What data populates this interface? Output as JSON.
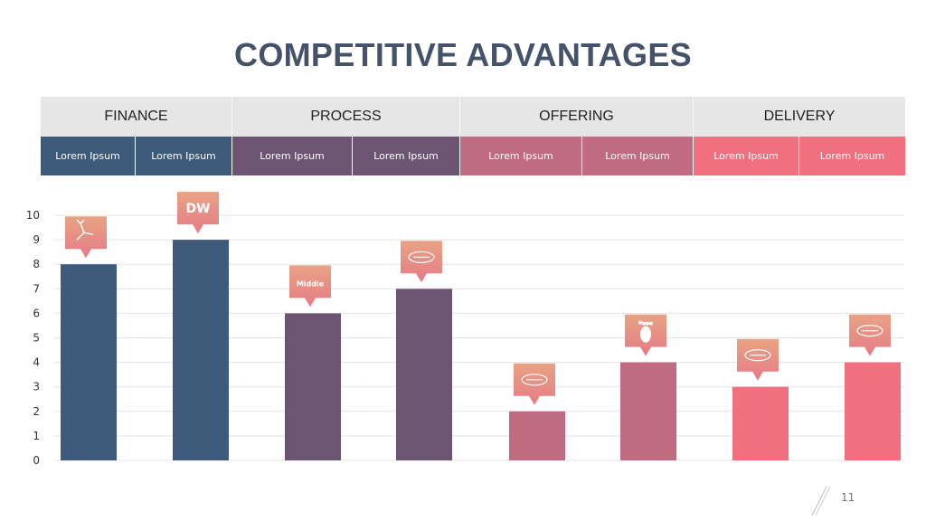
{
  "title": "COMPETITIVE ADVANTAGES",
  "page_number": "11",
  "groups": [
    {
      "label": "FINANCE"
    },
    {
      "label": "PROCESS"
    },
    {
      "label": "OFFERING"
    },
    {
      "label": "DELIVERY"
    }
  ],
  "subcategories": [
    {
      "label": "Lorem Ipsum"
    },
    {
      "label": "Lorem Ipsum"
    },
    {
      "label": "Lorem Ipsum"
    },
    {
      "label": "Lorem Ipsum"
    },
    {
      "label": "Lorem Ipsum"
    },
    {
      "label": "Lorem Ipsum"
    },
    {
      "label": "Lorem Ipsum"
    },
    {
      "label": "Lorem Ipsum"
    }
  ],
  "colors": {
    "finance": "#3d5a7a",
    "process": "#6b5573",
    "offering": "#c06b80",
    "delivery": "#f0707f",
    "badge_top": "#e8a383",
    "badge_bottom": "#e57b86"
  },
  "chart_data": {
    "type": "bar",
    "title": "",
    "xlabel": "",
    "ylabel": "",
    "ylim": [
      0,
      10
    ],
    "yticks": [
      0,
      1,
      2,
      3,
      4,
      5,
      6,
      7,
      8,
      9,
      10
    ],
    "grid": true,
    "categories": [
      "Lorem Ipsum",
      "Lorem Ipsum",
      "Lorem Ipsum",
      "Lorem Ipsum",
      "Lorem Ipsum",
      "Lorem Ipsum",
      "Lorem Ipsum",
      "Lorem Ipsum"
    ],
    "values": [
      8,
      9,
      6,
      7,
      2,
      4,
      3,
      4
    ],
    "bar_groups": [
      "finance",
      "finance",
      "process",
      "process",
      "offering",
      "offering",
      "delivery",
      "delivery"
    ],
    "logo_badges": [
      {
        "icon": "deer-logo-icon"
      },
      {
        "icon": "dw-logo-icon",
        "text": "DW"
      },
      {
        "icon": "middle-logo-icon",
        "text": "Middle"
      },
      {
        "icon": "script-logo-icon"
      },
      {
        "icon": "snow-city-logo-icon"
      },
      {
        "icon": "footprint-logo-icon"
      },
      {
        "icon": "green-logo-icon"
      },
      {
        "icon": "tag-logo-icon"
      }
    ]
  }
}
